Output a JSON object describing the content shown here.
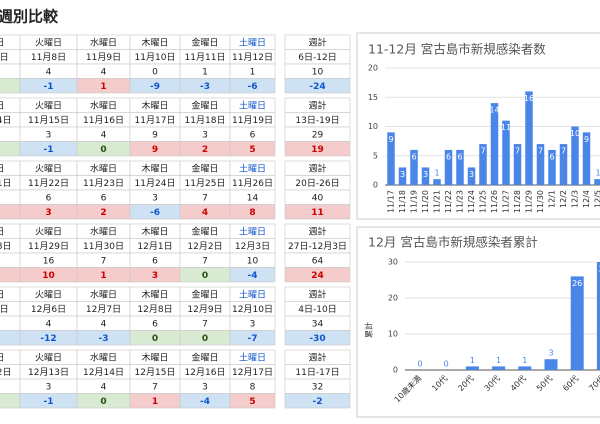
{
  "title": "週別比較",
  "weekly": {
    "days": [
      "月曜日",
      "火曜日",
      "水曜日",
      "木曜日",
      "金曜日",
      "土曜日"
    ],
    "total_label": "週計",
    "weeks": [
      {
        "dates": [
          "11月7日",
          "11月8日",
          "11月9日",
          "11月10日",
          "11月11日",
          "11月12日"
        ],
        "range": "6日-12日",
        "counts": [
          0,
          4,
          4,
          0,
          1,
          1
        ],
        "total": 10,
        "diffs": [
          0,
          -1,
          1,
          -9,
          -3,
          -6
        ],
        "total_diff": -24
      },
      {
        "dates": [
          "11月14日",
          "11月15日",
          "11月16日",
          "11月17日",
          "11月18日",
          "11月19日"
        ],
        "range": "13日-19日",
        "counts": [
          0,
          3,
          4,
          9,
          3,
          6
        ],
        "total": 29,
        "diffs": [
          0,
          -1,
          0,
          9,
          2,
          5
        ],
        "total_diff": 19
      },
      {
        "dates": [
          "11月21日",
          "11月22日",
          "11月23日",
          "11月24日",
          "11月25日",
          "11月26日"
        ],
        "range": "20日-26日",
        "counts": [
          1,
          6,
          6,
          3,
          7,
          14
        ],
        "total": 40,
        "diffs": [
          1,
          3,
          2,
          -6,
          4,
          8
        ],
        "total_diff": 11
      },
      {
        "dates": [
          "11月28日",
          "11月29日",
          "11月30日",
          "12月1日",
          "12月2日",
          "12月3日"
        ],
        "range": "27日-12月3日",
        "counts": [
          7,
          16,
          7,
          6,
          7,
          10
        ],
        "total": 64,
        "diffs": [
          6,
          10,
          1,
          3,
          0,
          -4
        ],
        "total_diff": 24
      },
      {
        "dates": [
          "12月5日",
          "12月6日",
          "12月7日",
          "12月8日",
          "12月9日",
          "12月10日"
        ],
        "range": "4日-10日",
        "counts": [
          1,
          4,
          4,
          6,
          7,
          3
        ],
        "total": 34,
        "diffs": [
          -6,
          -12,
          -3,
          0,
          0,
          -7
        ],
        "total_diff": -30
      },
      {
        "dates": [
          "12月12日",
          "12月13日",
          "12月14日",
          "12月15日",
          "12月16日",
          "12月17日"
        ],
        "range": "11日-17日",
        "counts": [
          1,
          3,
          4,
          7,
          3,
          8
        ],
        "total": 32,
        "diffs": [
          0,
          -1,
          0,
          1,
          -4,
          5
        ],
        "total_diff": -2
      }
    ]
  },
  "chart_data": [
    {
      "type": "bar",
      "title": "11-12月 宮古島市新規感染者数",
      "categories": [
        "11/17",
        "11/18",
        "11/19",
        "11/20",
        "11/21",
        "11/22",
        "11/23",
        "11/24",
        "11/25",
        "11/26",
        "11/27",
        "11/28",
        "11/29",
        "11/30",
        "12/1",
        "12/2",
        "12/3",
        "12/4",
        "12/5"
      ],
      "values": [
        9,
        3,
        6,
        3,
        1,
        6,
        6,
        3,
        7,
        14,
        11,
        7,
        16,
        7,
        6,
        7,
        10,
        9,
        1
      ],
      "color": "#4a86e8",
      "ylim": [
        0,
        20
      ],
      "yticks": [
        0,
        5,
        10,
        15,
        20
      ],
      "grid": true
    },
    {
      "type": "bar",
      "title": "12月 宮古島市新規感染者累計",
      "y_label": "累計",
      "categories": [
        "10歳未満",
        "10代",
        "20代",
        "30代",
        "40代",
        "50代",
        "60代",
        "70代"
      ],
      "values": [
        0,
        0,
        1,
        1,
        1,
        3,
        26,
        30
      ],
      "color": "#4a86e8",
      "ylim": [
        0,
        30
      ],
      "yticks": [
        0,
        10,
        20,
        30
      ],
      "grid": true
    }
  ]
}
